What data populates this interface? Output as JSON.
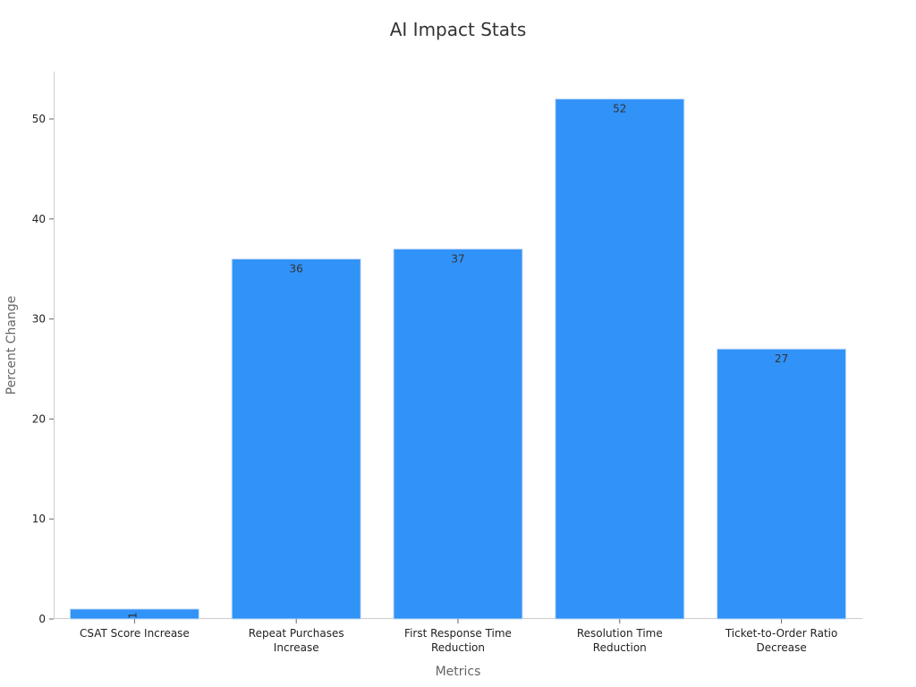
{
  "chart_data": {
    "type": "bar",
    "title": "AI Impact Stats",
    "xlabel": "Metrics",
    "ylabel": "Percent Change",
    "categories": [
      "CSAT Score Increase",
      "Repeat Purchases Increase",
      "First Response Time Reduction",
      "Resolution Time Reduction",
      "Ticket-to-Order Ratio Decrease"
    ],
    "values": [
      1,
      36,
      37,
      52,
      27
    ],
    "data_labels": [
      "1",
      "36",
      "37",
      "52",
      "27"
    ],
    "ylim": [
      0,
      55
    ],
    "yticks": [
      0,
      10,
      20,
      30,
      40,
      50
    ],
    "grid": false,
    "bar_color": "#3192f7"
  }
}
